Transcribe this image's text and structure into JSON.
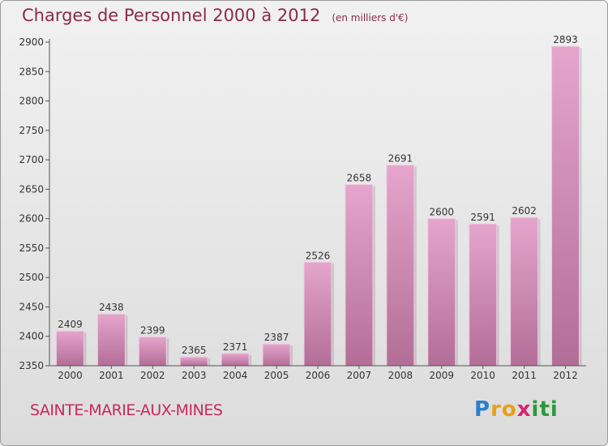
{
  "title": {
    "main": "Charges de Personnel 2000 à 2012",
    "unit": "(en milliers d'€)"
  },
  "place_name": "SAINTE-MARIE-AUX-MINES",
  "logo": {
    "letters": [
      "P",
      "r",
      "o",
      "x",
      "i",
      "t",
      "i"
    ],
    "colors": [
      "#2b7fcf",
      "#e8a019",
      "#e8a019",
      "#d8236f",
      "#2b9a3a",
      "#2b9a3a",
      "#2b9a3a"
    ]
  },
  "colors": {
    "bar_top": "#e5a5cd",
    "bar_bottom": "#b36e97",
    "bar_edge": "#f2cbe2",
    "text": "#333333",
    "title": "#8a2a4e",
    "place": "#c8285f"
  },
  "chart_data": {
    "type": "bar",
    "categories": [
      "2000",
      "2001",
      "2002",
      "2003",
      "2004",
      "2005",
      "2006",
      "2007",
      "2008",
      "2009",
      "2010",
      "2011",
      "2012"
    ],
    "values": [
      2409,
      2438,
      2399,
      2365,
      2371,
      2387,
      2526,
      2658,
      2691,
      2600,
      2591,
      2602,
      2893
    ],
    "data_labels": [
      "2409",
      "2438",
      "2399",
      "2365",
      "2371",
      "2387",
      "2526",
      "2658",
      "2691",
      "2600",
      "2591",
      "2602",
      "2893"
    ],
    "title": "Charges de Personnel 2000 à 2012",
    "xlabel": "",
    "ylabel": "",
    "ylim": [
      2350,
      2900
    ],
    "yticks": [
      2350,
      2400,
      2450,
      2500,
      2550,
      2600,
      2650,
      2700,
      2750,
      2800,
      2850,
      2900
    ],
    "grid": false,
    "legend": "none"
  }
}
